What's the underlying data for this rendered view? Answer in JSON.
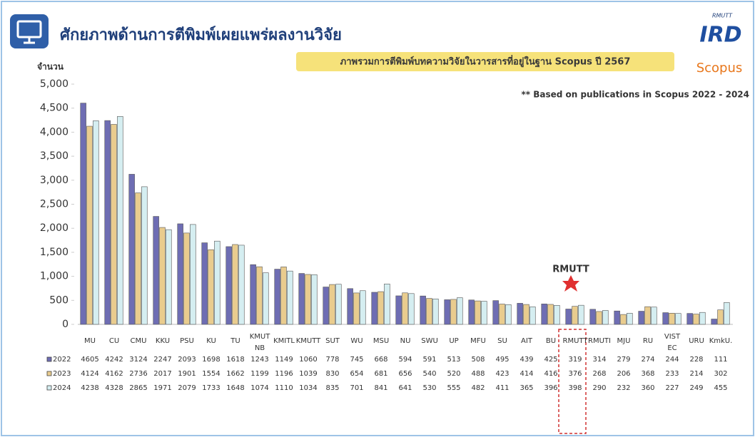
{
  "chart_data": {
    "type": "bar",
    "title": "ศักยภาพด้านการตีพิมพ์เผยแพร่ผลงานวิจัย",
    "subtitle": "ภาพรวมการตีพิมพ์บทความวิจัยในวารสารที่อยู่ในฐาน Scopus ปี 2567",
    "y_label": "จำนวน",
    "note": "** Based on publications in Scopus 2022 - 2024",
    "annotation": "RMUTT",
    "logo": {
      "top": "RMUTT",
      "main": "IRD",
      "bottom": "Scopus"
    },
    "categories": [
      "MU",
      "CU",
      "CMU",
      "KKU",
      "PSU",
      "KU",
      "TU",
      "KMUTNB",
      "KMITL",
      "KMUTT",
      "SUT",
      "WU",
      "MSU",
      "NU",
      "SWU",
      "UP",
      "MFU",
      "SU",
      "AIT",
      "BU",
      "RMUTT",
      "RMUTI",
      "MJU",
      "RU",
      "VISTEC",
      "URU",
      "KmkU."
    ],
    "series": [
      {
        "name": "2022",
        "color": "#6e6db3",
        "values": [
          4605,
          4242,
          3124,
          2247,
          2093,
          1698,
          1618,
          1243,
          1149,
          1060,
          778,
          745,
          668,
          594,
          591,
          513,
          508,
          495,
          439,
          425,
          319,
          314,
          279,
          274,
          244,
          228,
          111
        ]
      },
      {
        "name": "2023",
        "color": "#e9cc8e",
        "values": [
          4124,
          4162,
          2736,
          2017,
          1901,
          1554,
          1662,
          1199,
          1196,
          1039,
          830,
          654,
          681,
          656,
          540,
          520,
          488,
          423,
          414,
          416,
          376,
          268,
          206,
          368,
          233,
          214,
          302
        ]
      },
      {
        "name": "2024",
        "color": "#d5eef1",
        "values": [
          4238,
          4328,
          2865,
          1971,
          2079,
          1733,
          1648,
          1074,
          1110,
          1034,
          835,
          701,
          841,
          641,
          530,
          555,
          482,
          411,
          365,
          396,
          398,
          290,
          232,
          360,
          227,
          249,
          455
        ]
      }
    ],
    "ylim": [
      0,
      5000
    ],
    "yticks": [
      0,
      500,
      {
        "value": 1000,
        "label": "1,000"
      },
      {
        "value": 1500,
        "label": "1,500"
      },
      {
        "value": 2000,
        "label": "2,000"
      },
      {
        "value": 2500,
        "label": "2,500"
      },
      {
        "value": 3000,
        "label": "3,000"
      },
      {
        "value": 3500,
        "label": "3,500"
      },
      {
        "value": 4000,
        "label": "4,000"
      },
      {
        "value": 4500,
        "label": "4,500"
      },
      {
        "value": 5000,
        "label": "5,000"
      }
    ],
    "grid": false
  }
}
